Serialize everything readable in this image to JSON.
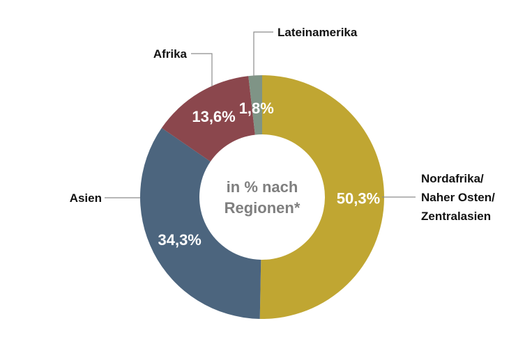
{
  "chart_data": {
    "type": "pie",
    "variant": "donut",
    "center_text": [
      "in % nach",
      "Regionen*"
    ],
    "slices": [
      {
        "category": "Nordafrika/ Naher Osten/ Zentralasien",
        "category_lines": [
          "Nordafrika/",
          "Naher Osten/",
          "Zentralasien"
        ],
        "value": 50.3,
        "value_label": "50,3%",
        "color": "#c0a632"
      },
      {
        "category": "Asien",
        "category_lines": [
          "Asien"
        ],
        "value": 34.3,
        "value_label": "34,3%",
        "color": "#4c657e"
      },
      {
        "category": "Afrika",
        "category_lines": [
          "Afrika"
        ],
        "value": 13.6,
        "value_label": "13,6%",
        "color": "#8b474d"
      },
      {
        "category": "Lateinamerika",
        "category_lines": [
          "Lateinamerika"
        ],
        "value": 1.8,
        "value_label": "1,8%",
        "color": "#7f9486"
      }
    ],
    "start": "12 o'clock",
    "direction": "clockwise"
  }
}
